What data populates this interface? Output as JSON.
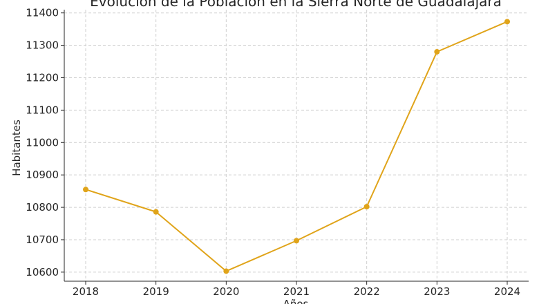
{
  "chart_data": {
    "type": "line",
    "title": "Evolución de la Población en la Sierra Norte de Guadalajara",
    "xlabel": "Años",
    "ylabel": "Habitantes",
    "x": [
      "2018",
      "2019",
      "2020",
      "2021",
      "2022",
      "2023",
      "2024"
    ],
    "series": [
      {
        "values": [
          10855,
          10786,
          10603,
          10697,
          10802,
          11280,
          11373
        ]
      }
    ],
    "yticks": [
      10600,
      10700,
      10800,
      10900,
      11000,
      11100,
      11200,
      11300,
      11400
    ],
    "ylim": [
      10572,
      11410
    ],
    "grid": true,
    "line_color": "#E0A41A"
  }
}
